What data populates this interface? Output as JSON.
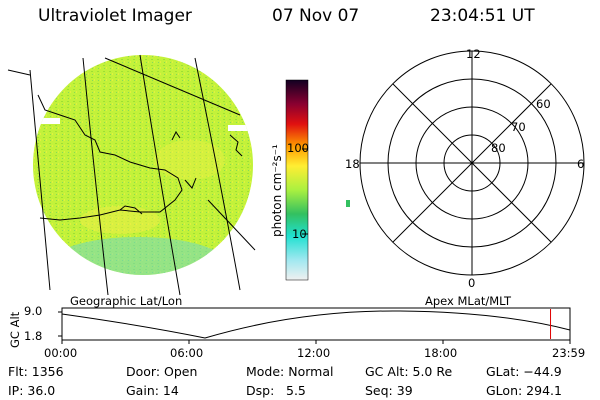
{
  "header": {
    "title": "Ultraviolet Imager",
    "date": "07 Nov 07",
    "time": "23:04:51 UT"
  },
  "colorbar": {
    "unit_label": "photon cm⁻²s⁻¹",
    "ticks": [
      "100",
      "10"
    ]
  },
  "polar_plot": {
    "mlt_labels": {
      "top": "12",
      "right": "6",
      "left": "18",
      "bottom": "0"
    },
    "lat_labels": [
      "60",
      "70",
      "80"
    ]
  },
  "map_labels": {
    "left": "Geographic Lat/Lon",
    "right": "Apex MLat/MLT"
  },
  "orbit_plot": {
    "axis_label": "GC Alt",
    "y_ticks": [
      "9.0",
      "1.8"
    ],
    "x_ticks": [
      "00:00",
      "06:00",
      "12:00",
      "18:00",
      "23:59"
    ],
    "current_marker_hours": 23.08,
    "marker_color": "#e00000"
  },
  "info": {
    "row1": {
      "flt": "Flt: 1356",
      "door": "Door: Open",
      "mode": "Mode: Normal",
      "gcalt": "GC Alt: 5.0 Re",
      "glat": "GLat: −44.9"
    },
    "row2": {
      "ip": "IP: 36.0",
      "gain": "Gain: 14",
      "dsp_label": "Dsp:",
      "dsp_value": "5.5",
      "seq": "Seq: 39",
      "glon": "GLon: 294.1"
    }
  }
}
